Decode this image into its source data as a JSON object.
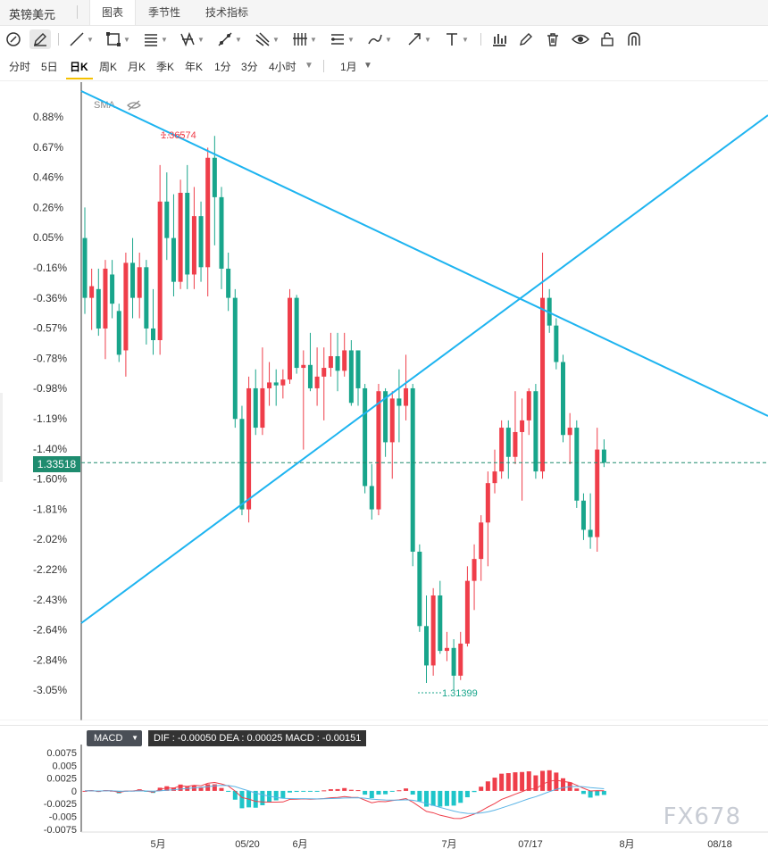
{
  "app": {
    "title": "英镑美元"
  },
  "tabs": [
    {
      "label": "图表",
      "active": true
    },
    {
      "label": "季节性",
      "active": false
    },
    {
      "label": "技术指标",
      "active": false
    }
  ],
  "toolbar": {
    "icons": [
      "crosshair-icon",
      "pencil-icon",
      "line-tool-icon",
      "rectangle-tool-icon",
      "fib-tool-icon",
      "pattern-tool-icon",
      "path-tool-icon",
      "multi-line-tool-icon",
      "pitchfork-tool-icon",
      "channel-tool-icon",
      "brush-tool-icon",
      "arrow-tool-icon",
      "text-tool-icon",
      "measure-icon",
      "edit-icon",
      "trash-icon",
      "eye-icon",
      "lock-icon",
      "magnet-icon"
    ]
  },
  "periods": {
    "items": [
      "分时",
      "5日",
      "日K",
      "周K",
      "月K",
      "季K",
      "年K",
      "1分",
      "3分",
      "4小时"
    ],
    "active": "日K",
    "range_label": "1月"
  },
  "main_chart": {
    "indicator_label": "SMA",
    "y_ticks": [
      "0.88%",
      "0.67%",
      "0.46%",
      "0.26%",
      "0.05%",
      "-0.16%",
      "-0.36%",
      "-0.57%",
      "-0.78%",
      "-0.98%",
      "-1.19%",
      "-1.40%",
      "-1.60%",
      "-1.81%",
      "-2.02%",
      "-2.22%",
      "-2.43%",
      "-2.64%",
      "-2.84%",
      "-3.05%"
    ],
    "current_price": "1.33518",
    "high_label": "1.36574",
    "low_label": "1.31399",
    "colors": {
      "up": "#ef3e4a",
      "down": "#18a58b",
      "trendline": "#1eb4f0",
      "price_line": "#1e8c6f"
    }
  },
  "macd": {
    "button_label": "MACD",
    "info": "DIF : -0.00050   DEA : 0.00025   MACD : -0.00151",
    "y_ticks": [
      "0.0075",
      "0.005",
      "0.0025",
      "0",
      "-0.0025",
      "-0.005",
      "-0.0075"
    ]
  },
  "x_axis": [
    "5月",
    "05/20",
    "6月",
    "7月",
    "07/17",
    "8月",
    "08/18"
  ],
  "watermark": "FX678",
  "chart_data": {
    "type": "candlestick",
    "title": "英镑美元",
    "ylabel": "",
    "y_range_pct": [
      -3.05,
      0.88
    ],
    "high": 1.36574,
    "low": 1.31399,
    "last": 1.33518,
    "candles_pct": [
      [
        0.05,
        -0.36,
        0.26,
        -0.47
      ],
      [
        -0.36,
        -0.28,
        -0.16,
        -0.58
      ],
      [
        -0.3,
        -0.57,
        -0.16,
        -0.62
      ],
      [
        -0.57,
        -0.16,
        -0.1,
        -0.78
      ],
      [
        -0.2,
        -0.4,
        -0.1,
        -0.5
      ],
      [
        -0.45,
        -0.75,
        -0.4,
        -0.8
      ],
      [
        -0.72,
        -0.12,
        -0.05,
        -0.9
      ],
      [
        -0.12,
        -0.36,
        0.05,
        -0.5
      ],
      [
        -0.36,
        -0.15,
        -0.05,
        -0.5
      ],
      [
        -0.15,
        -0.57,
        -0.1,
        -0.68
      ],
      [
        -0.57,
        -0.65,
        -0.3,
        -0.75
      ],
      [
        -0.65,
        0.3,
        0.55,
        -0.75
      ],
      [
        0.3,
        0.05,
        0.5,
        -0.1
      ],
      [
        0.05,
        -0.25,
        0.35,
        -0.35
      ],
      [
        -0.25,
        0.36,
        0.45,
        -0.3
      ],
      [
        0.36,
        -0.2,
        0.55,
        -0.3
      ],
      [
        -0.2,
        0.2,
        0.4,
        -0.3
      ],
      [
        0.2,
        -0.15,
        0.3,
        -0.25
      ],
      [
        -0.15,
        0.6,
        0.67,
        -0.35
      ],
      [
        0.6,
        0.33,
        0.75,
        0.0
      ],
      [
        0.33,
        -0.16,
        0.4,
        -0.3
      ],
      [
        -0.16,
        -0.36,
        -0.05,
        -0.45
      ],
      [
        -0.36,
        -1.19,
        -0.3,
        -1.25
      ],
      [
        -1.19,
        -1.81,
        -1.1,
        -1.85
      ],
      [
        -1.81,
        -0.98,
        -0.9,
        -1.9
      ],
      [
        -0.98,
        -1.25,
        -0.85,
        -1.3
      ],
      [
        -1.25,
        -0.98,
        -0.7,
        -1.3
      ],
      [
        -0.98,
        -0.94,
        -0.8,
        -1.1
      ],
      [
        -0.94,
        -0.96,
        -0.85,
        -1.1
      ],
      [
        -0.96,
        -0.92,
        -0.85,
        -1.05
      ],
      [
        -0.92,
        -0.36,
        -0.3,
        -0.95
      ],
      [
        -0.36,
        -0.84,
        -0.34,
        -0.88
      ],
      [
        -0.84,
        -0.82,
        -0.72,
        -1.4
      ],
      [
        -0.82,
        -0.98,
        -0.6,
        -1.0
      ],
      [
        -0.98,
        -0.9,
        -0.7,
        -1.1
      ],
      [
        -0.9,
        -0.84,
        -0.7,
        -1.2
      ],
      [
        -0.84,
        -0.76,
        -0.6,
        -0.9
      ],
      [
        -0.76,
        -0.86,
        -0.6,
        -1.0
      ],
      [
        -0.86,
        -0.72,
        -0.6,
        -0.9
      ],
      [
        -0.72,
        -1.08,
        -0.65,
        -1.1
      ],
      [
        -0.72,
        -0.98,
        -0.8,
        -1.1
      ],
      [
        -0.98,
        -1.65,
        -0.95,
        -1.7
      ],
      [
        -1.65,
        -1.81,
        -1.5,
        -1.88
      ],
      [
        -1.81,
        -1.0,
        -0.95,
        -1.85
      ],
      [
        -1.0,
        -1.35,
        -0.98,
        -1.45
      ],
      [
        -1.35,
        -1.05,
        -1.0,
        -1.6
      ],
      [
        -1.05,
        -1.1,
        -0.85,
        -1.35
      ],
      [
        -1.1,
        -0.98,
        -0.75,
        -1.2
      ],
      [
        -0.98,
        -2.1,
        -0.95,
        -2.2
      ],
      [
        -2.1,
        -2.61,
        -2.05,
        -2.65
      ],
      [
        -2.61,
        -2.88,
        -2.4,
        -3.0
      ],
      [
        -2.88,
        -2.4,
        -2.35,
        -2.95
      ],
      [
        -2.4,
        -2.78,
        -2.3,
        -2.8
      ],
      [
        -2.78,
        -2.76,
        -2.65,
        -2.85
      ],
      [
        -2.76,
        -2.95,
        -2.7,
        -3.05
      ],
      [
        -2.95,
        -2.73,
        -2.65,
        -2.98
      ],
      [
        -2.73,
        -2.3,
        -2.2,
        -2.75
      ],
      [
        -2.3,
        -2.15,
        -2.05,
        -2.5
      ],
      [
        -2.15,
        -1.9,
        -1.85,
        -2.3
      ],
      [
        -1.9,
        -1.63,
        -1.55,
        -2.2
      ],
      [
        -1.63,
        -1.55,
        -1.4,
        -1.7
      ],
      [
        -1.55,
        -1.25,
        -1.2,
        -1.6
      ],
      [
        -1.25,
        -1.45,
        -1.2,
        -1.6
      ],
      [
        -1.45,
        -1.28,
        -1.0,
        -1.5
      ],
      [
        -1.28,
        -1.2,
        -1.05,
        -1.75
      ],
      [
        -1.2,
        -1.0,
        -0.98,
        -1.3
      ],
      [
        -1.0,
        -1.55,
        -0.95,
        -1.6
      ],
      [
        -1.55,
        -0.36,
        -0.05,
        -1.6
      ],
      [
        -0.36,
        -0.55,
        -0.3,
        -0.6
      ],
      [
        -0.55,
        -0.8,
        -0.5,
        -0.85
      ],
      [
        -0.8,
        -1.3,
        -0.75,
        -1.35
      ],
      [
        -1.3,
        -1.25,
        -1.15,
        -1.5
      ],
      [
        -1.25,
        -1.75,
        -1.2,
        -1.8
      ],
      [
        -1.75,
        -1.95,
        -1.7,
        -2.02
      ],
      [
        -1.95,
        -2.0,
        -1.7,
        -2.08
      ],
      [
        -2.0,
        -1.4,
        -1.25,
        -2.1
      ],
      [
        -1.4,
        -1.49,
        -1.33,
        -1.52
      ]
    ]
  }
}
